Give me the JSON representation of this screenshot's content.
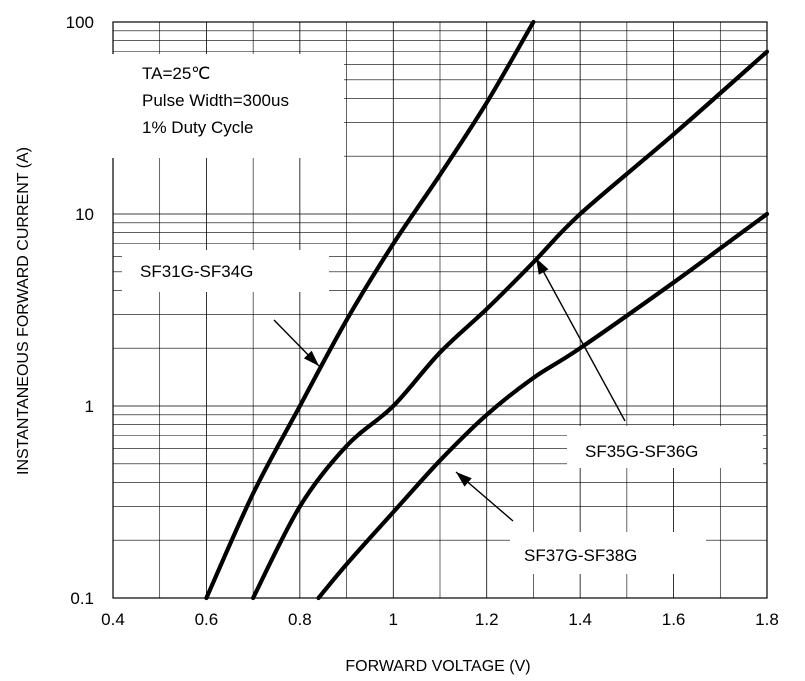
{
  "chart_data": {
    "type": "line",
    "title": "",
    "xlabel": "FORWARD VOLTAGE (V)",
    "ylabel": "INSTANTANEOUS FORWARD CURRENT (A)",
    "xlim": [
      0.4,
      1.8
    ],
    "ylim": [
      0.1,
      100
    ],
    "yscale": "log",
    "grid": true,
    "x_ticks": [
      "0.4",
      "0.6",
      "0.8",
      "1",
      "1.2",
      "1.4",
      "1.6",
      "1.8"
    ],
    "y_ticks": [
      "0.1",
      "1",
      "10",
      "100"
    ],
    "conditions": [
      "TA=25℃",
      "Pulse Width=300us",
      "1% Duty Cycle"
    ],
    "series": [
      {
        "name": "SF31G-SF34G",
        "points": [
          [
            0.6,
            0.1
          ],
          [
            0.7,
            0.35
          ],
          [
            0.8,
            1.0
          ],
          [
            0.9,
            2.8
          ],
          [
            1.0,
            7.0
          ],
          [
            1.1,
            16
          ],
          [
            1.2,
            38
          ],
          [
            1.3,
            100
          ]
        ]
      },
      {
        "name": "SF35G-SF36G",
        "points": [
          [
            0.7,
            0.1
          ],
          [
            0.8,
            0.3
          ],
          [
            0.9,
            0.62
          ],
          [
            1.0,
            1.0
          ],
          [
            1.1,
            1.9
          ],
          [
            1.2,
            3.2
          ],
          [
            1.3,
            5.6
          ],
          [
            1.4,
            10
          ],
          [
            1.6,
            26
          ],
          [
            1.8,
            70
          ]
        ]
      },
      {
        "name": "SF37G-SF38G",
        "points": [
          [
            0.84,
            0.1
          ],
          [
            0.9,
            0.15
          ],
          [
            1.0,
            0.28
          ],
          [
            1.1,
            0.52
          ],
          [
            1.2,
            0.9
          ],
          [
            1.3,
            1.4
          ],
          [
            1.4,
            2.0
          ],
          [
            1.6,
            4.4
          ],
          [
            1.8,
            10
          ]
        ]
      }
    ]
  }
}
